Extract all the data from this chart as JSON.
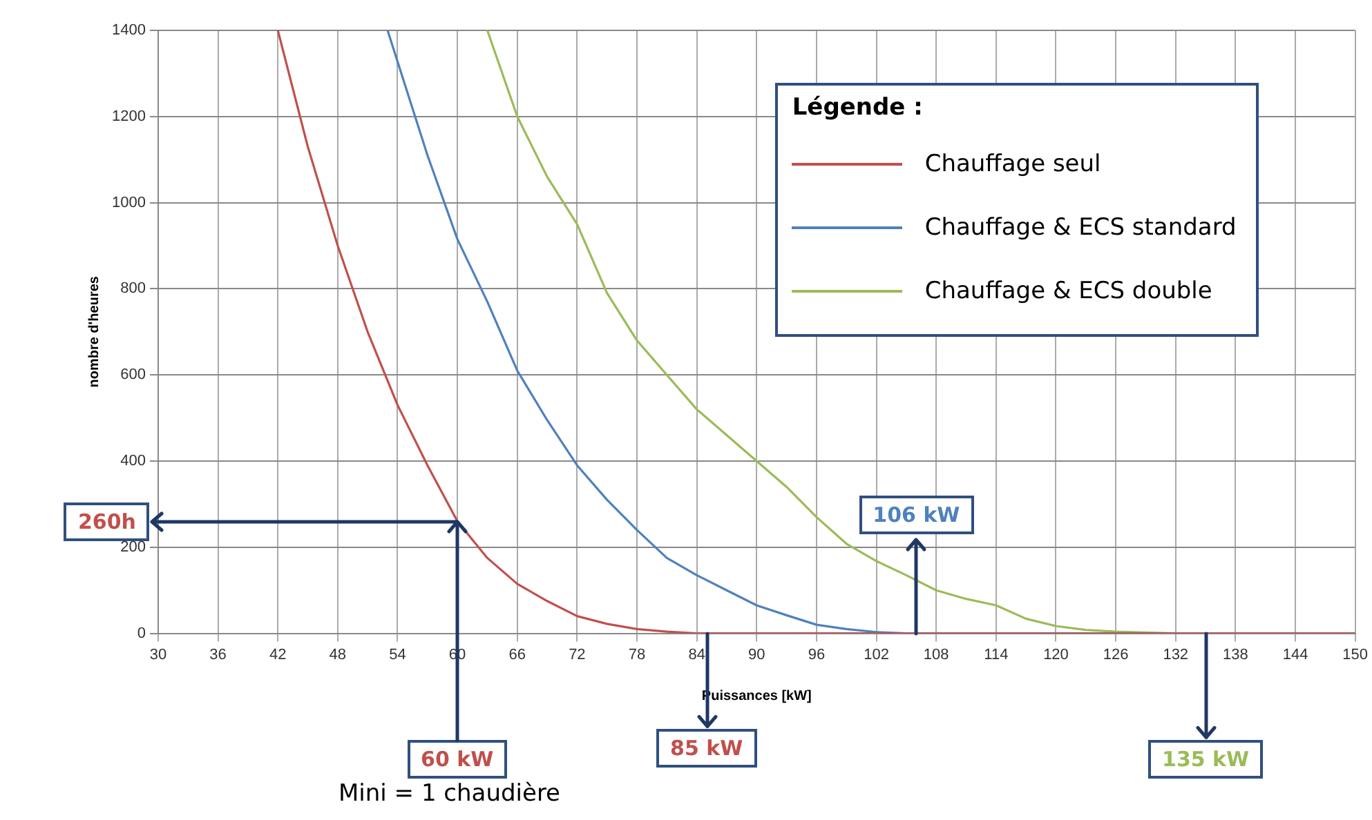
{
  "chart_data": {
    "type": "line",
    "xlabel": "Puissances [kW]",
    "ylabel": "nombre d'heures",
    "legend_title": "Légende :",
    "legend": "top right",
    "grid": true,
    "marker": "none",
    "line_style": "solid",
    "xlim": [
      30,
      150
    ],
    "xticks": [
      30,
      36,
      42,
      48,
      54,
      60,
      66,
      72,
      78,
      84,
      90,
      96,
      102,
      108,
      114,
      120,
      126,
      132,
      138,
      144,
      150
    ],
    "ylim": [
      0,
      1400
    ],
    "yticks": [
      0,
      200,
      400,
      600,
      800,
      1000,
      1200,
      1400
    ],
    "series": [
      {
        "name": "Chauffage seul",
        "color": "#c0504d",
        "x": [
          42,
          45,
          48,
          51,
          54,
          57,
          60,
          63,
          66,
          69,
          72,
          75,
          78,
          81,
          84,
          150
        ],
        "values": [
          1400,
          1130,
          900,
          700,
          530,
          390,
          260,
          175,
          115,
          75,
          40,
          22,
          10,
          4,
          0,
          0
        ]
      },
      {
        "name": "Chauffage & ECS standard",
        "color": "#4f81bd",
        "x": [
          53,
          57,
          60,
          63,
          66,
          69,
          72,
          75,
          78,
          81,
          84,
          87,
          90,
          93,
          96,
          99,
          102,
          105,
          150
        ],
        "values": [
          1400,
          1110,
          915,
          770,
          610,
          495,
          390,
          310,
          240,
          175,
          135,
          100,
          65,
          42,
          20,
          10,
          3,
          0,
          0
        ]
      },
      {
        "name": "Chauffage & ECS double",
        "color": "#9bbb59",
        "x": [
          63,
          66,
          69,
          72,
          75,
          78,
          81,
          84,
          87,
          90,
          93,
          96,
          99,
          102,
          105,
          108,
          111,
          114,
          117,
          120,
          123,
          126,
          129,
          132,
          150
        ],
        "values": [
          1400,
          1200,
          1060,
          950,
          790,
          680,
          600,
          520,
          460,
          400,
          340,
          270,
          208,
          168,
          135,
          100,
          80,
          65,
          34,
          17,
          8,
          4,
          2,
          0,
          0
        ]
      }
    ],
    "annotations": [
      {
        "text": "260h",
        "x": 60,
        "y": 260
      },
      {
        "text": "60 kW",
        "x": 60,
        "y": 260
      },
      {
        "text": "85 kW",
        "x": 85,
        "y": 0
      },
      {
        "text": "106 kW",
        "x": 106,
        "y": 0
      },
      {
        "text": "135 kW",
        "x": 135,
        "y": 0
      },
      "Mini = 1 chaudière"
    ]
  }
}
